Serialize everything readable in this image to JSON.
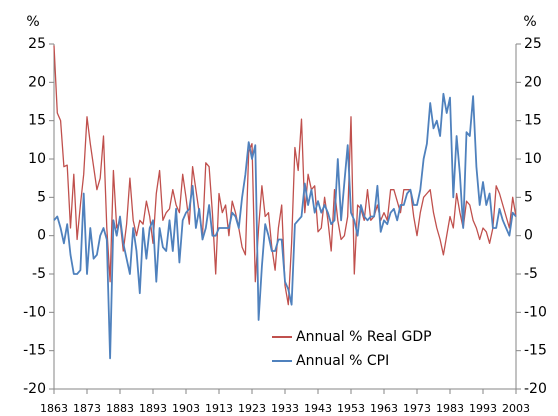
{
  "chart_data": {
    "type": "line",
    "ylabel": "%",
    "y2label": "%",
    "x": [
      1863,
      1864,
      1865,
      1866,
      1867,
      1868,
      1869,
      1870,
      1871,
      1872,
      1873,
      1874,
      1875,
      1876,
      1877,
      1878,
      1879,
      1880,
      1881,
      1882,
      1883,
      1884,
      1885,
      1886,
      1887,
      1888,
      1889,
      1890,
      1891,
      1892,
      1893,
      1894,
      1895,
      1896,
      1897,
      1898,
      1899,
      1900,
      1901,
      1902,
      1903,
      1904,
      1905,
      1906,
      1907,
      1908,
      1909,
      1910,
      1911,
      1912,
      1913,
      1914,
      1915,
      1916,
      1917,
      1918,
      1919,
      1920,
      1921,
      1922,
      1923,
      1924,
      1925,
      1926,
      1927,
      1928,
      1929,
      1930,
      1931,
      1932,
      1933,
      1934,
      1935,
      1936,
      1937,
      1938,
      1939,
      1940,
      1941,
      1942,
      1943,
      1944,
      1945,
      1946,
      1947,
      1948,
      1949,
      1950,
      1951,
      1952,
      1953,
      1954,
      1955,
      1956,
      1957,
      1958,
      1959,
      1960,
      1961,
      1962,
      1963,
      1964,
      1965,
      1966,
      1967,
      1968,
      1969,
      1970,
      1971,
      1972,
      1973,
      1974,
      1975,
      1976,
      1977,
      1978,
      1979,
      1980,
      1981,
      1982,
      1983,
      1984,
      1985,
      1986,
      1987,
      1988,
      1989,
      1990,
      1991,
      1992,
      1993,
      1994,
      1995,
      1996,
      1997,
      1998,
      1999,
      2000,
      2001,
      2002,
      2003
    ],
    "xlim": [
      1863,
      2003
    ],
    "xticks": [
      1863,
      1873,
      1883,
      1893,
      1903,
      1913,
      1923,
      1933,
      1943,
      1953,
      1963,
      1973,
      1983,
      1993,
      2003
    ],
    "ylim": [
      -20,
      25
    ],
    "yticks": [
      -20,
      -15,
      -10,
      -5,
      0,
      5,
      10,
      15,
      20,
      25
    ],
    "y2lim": [
      -20,
      25
    ],
    "y2ticks": [
      -20,
      -15,
      -10,
      -5,
      0,
      5,
      10,
      15,
      20,
      25
    ],
    "legend": "lower center",
    "series": [
      {
        "name": "Annual % Real GDP",
        "color": "#c0504d",
        "values": [
          24.8,
          16,
          15,
          9,
          9.2,
          1,
          8,
          -0.5,
          4,
          8,
          15.5,
          12,
          9,
          6,
          7.5,
          13,
          1,
          -6,
          8.5,
          1,
          2,
          -2,
          1.5,
          7.5,
          2,
          0,
          2,
          1.5,
          4.5,
          2.5,
          -1,
          5.5,
          8.5,
          2,
          3,
          3.5,
          6,
          4,
          3,
          8,
          5,
          1.5,
          9,
          6,
          3,
          0,
          9.5,
          9,
          3,
          -5,
          5.5,
          3,
          4,
          0,
          4.5,
          3,
          1,
          -1.5,
          -2.5,
          11,
          12,
          -6,
          1,
          6.5,
          2.5,
          3,
          -1.5,
          -4.5,
          1,
          4,
          -6.5,
          -9,
          -1,
          11.5,
          8.5,
          15.2,
          3,
          8,
          6,
          6.5,
          0.5,
          1,
          5,
          2,
          -2,
          6,
          2,
          -0.5,
          0,
          2.5,
          15.5,
          -5,
          4,
          3.5,
          2,
          6,
          2,
          2.5,
          4,
          2,
          3,
          2,
          6,
          6,
          4.5,
          3,
          6,
          6,
          6,
          2.5,
          0,
          3,
          5,
          5.5,
          6,
          3,
          1,
          -0.5,
          -2.5,
          0,
          2.5,
          1,
          5.5,
          3,
          1,
          4.5,
          4,
          2,
          1,
          -0.5,
          1,
          0.5,
          -1,
          1,
          6.5,
          5.5,
          4,
          2.5,
          1,
          5,
          2.5
        ]
      },
      {
        "name": "Annual % CPI",
        "color": "#4f81bd",
        "values": [
          2,
          2.5,
          1,
          -1,
          1.5,
          -2.5,
          -5,
          -5,
          -4.5,
          5.5,
          -5,
          1,
          -3,
          -2.5,
          0,
          1,
          -0.5,
          -16,
          2,
          0,
          2.5,
          -1,
          -3,
          -5,
          1,
          -2,
          -7.5,
          1,
          -3,
          1,
          2,
          -6,
          1,
          -1.5,
          -2,
          2,
          -2,
          3.5,
          -3.5,
          2,
          3,
          3.5,
          6.5,
          1,
          3.5,
          -0.5,
          1,
          4,
          0,
          0,
          1,
          1,
          1,
          1,
          3,
          2.5,
          1,
          5,
          8,
          12.2,
          10,
          11.8,
          -11,
          -4,
          1.5,
          0,
          -2,
          -2,
          -0.5,
          -0.5,
          -6,
          -7,
          -9,
          1.5,
          2,
          2.5,
          6.8,
          4,
          6,
          3,
          4.5,
          3,
          4,
          3,
          1.5,
          2,
          10,
          2,
          7,
          11.8,
          3,
          2,
          0,
          4,
          2.5,
          2,
          2.5,
          2.5,
          6.5,
          0.5,
          2,
          1.5,
          3,
          3.5,
          2,
          4,
          4,
          5.5,
          6,
          4,
          4,
          6,
          10,
          12,
          17.3,
          14,
          15,
          13,
          18.5,
          16,
          18,
          5,
          13,
          8,
          1,
          13.5,
          13,
          18.2,
          9,
          4,
          7,
          4,
          5.5,
          1,
          1,
          3.5,
          2,
          1,
          0,
          3,
          2.5
        ]
      }
    ]
  }
}
